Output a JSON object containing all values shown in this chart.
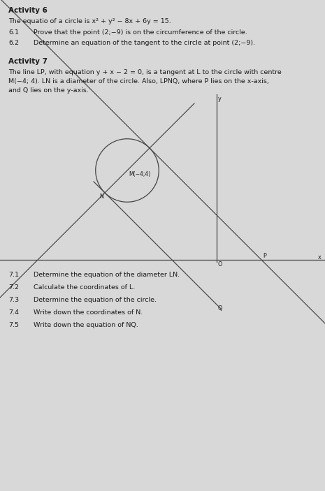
{
  "bg_color": "#d8d8d8",
  "title_act6": "Activity 6",
  "text_act6_intro": "The equatio of a circle is x² + y² − 8x + 6y = 15.",
  "q61_num": "6.1",
  "q61_text": "Prove that the point (2;−9) is on the circumference of the circle.",
  "q62_num": "6.2",
  "q62_text": "Determine an equation of the tangent to the circle at point (2;−9).",
  "title_act7": "Activity 7",
  "text_act7_line1": "The line LP, with equation y + x − 2 = 0, is a tangent at L to the circle with centre",
  "text_act7_line2": "M(−4; 4). LN is a diameter of the circle. Also, LPNQ, where P lies on the x-axis,",
  "text_act7_line3": "and Q lies on the y-axis.",
  "diagram_label_M": "M(−4;4)",
  "diagram_label_N": "N",
  "diagram_label_y": "y",
  "diagram_label_x": "x",
  "diagram_label_O": "O",
  "diagram_label_P": "P",
  "diagram_label_Q": "Q",
  "q71_num": "7.1",
  "q71_text": "Determine the equation of the diameter LN.",
  "q72_num": "7.2",
  "q72_text": "Calculate the coordinates of L.",
  "q73_num": "7.3",
  "q73_text": "Determine the equation of the circle.",
  "q74_num": "7.4",
  "q74_text": "Write down the coordinates of N.",
  "q75_num": "7.5",
  "q75_text": "Write down the equation of NQ.",
  "font_size_title": 7.5,
  "font_size_body": 6.8,
  "font_size_small": 5.5,
  "text_color": "#1a1a1a",
  "line_color": "#444444",
  "figw": 4.65,
  "figh": 7.03,
  "dpi": 100
}
